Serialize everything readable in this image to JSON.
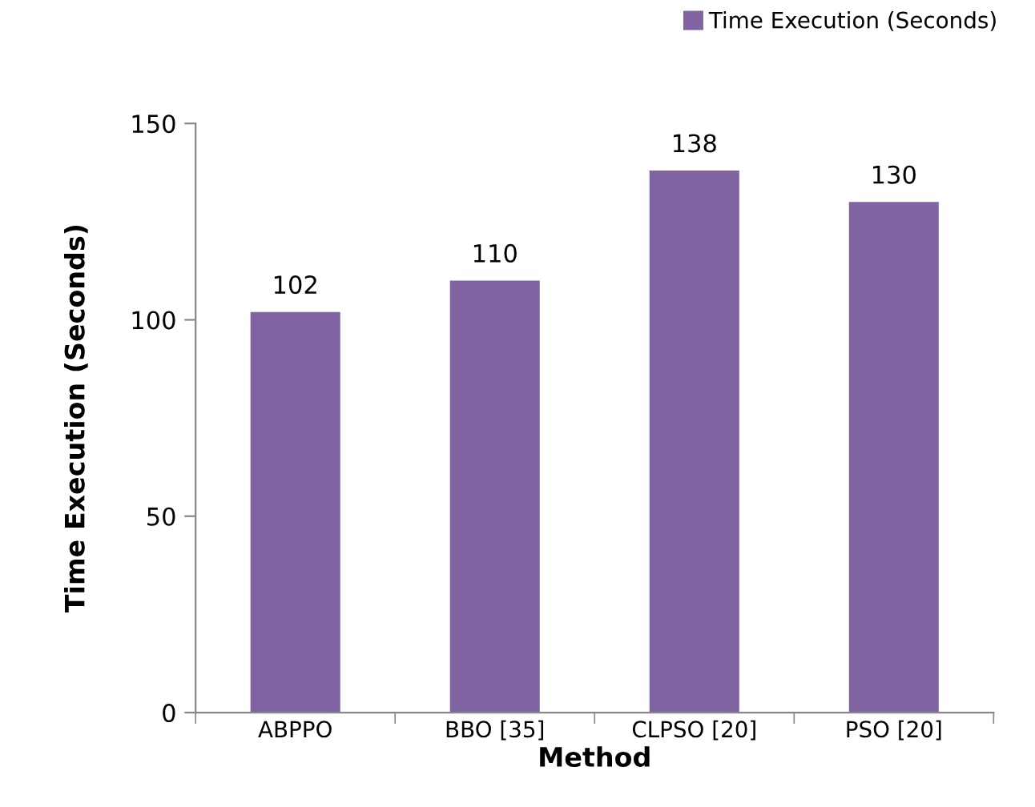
{
  "chart_data": {
    "type": "bar",
    "xlabel": "Method",
    "ylabel": "Time Execution (Seconds)",
    "categories": [
      "ABPPO",
      "BBO [35]",
      "CLPSO [20]",
      "PSO [20]"
    ],
    "series": [
      {
        "name": "Time Execution (Seconds)",
        "color": "#8064a2",
        "values": [
          102,
          110,
          138,
          130
        ]
      }
    ],
    "ylim": [
      0,
      150
    ],
    "yticks": [
      0,
      50,
      100,
      150
    ],
    "data_labels": true,
    "grid": false,
    "legend": "top right"
  }
}
